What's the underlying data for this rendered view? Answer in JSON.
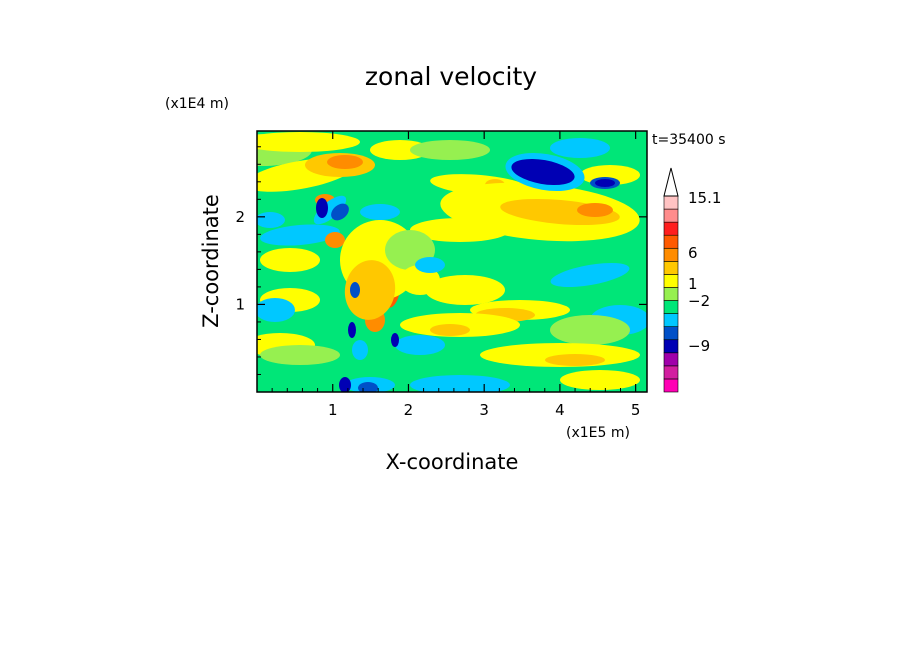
{
  "chart_data": {
    "type": "heatmap",
    "title": "zonal velocity",
    "xlabel": "X-coordinate",
    "ylabel": "Z-coordinate",
    "x_unit": "(x1E5 m)",
    "y_unit": "(x1E4 m)",
    "time_label": "t=35400 s",
    "xlim": [
      0,
      5.15
    ],
    "ylim": [
      0,
      2.98
    ],
    "x_ticks": [
      "1",
      "2",
      "3",
      "4",
      "5"
    ],
    "y_ticks": [
      "1",
      "2"
    ],
    "colorbar": {
      "levels": [
        -15,
        -12,
        -9,
        -6,
        -3,
        -2,
        -1,
        0,
        1,
        2,
        3,
        6,
        9,
        12,
        15.1
      ],
      "labels": [
        "15.1",
        "6",
        "1",
        "−2",
        "−9"
      ],
      "colors": [
        "#ff00b4",
        "#d21ea0",
        "#a000aa",
        "#0000b4",
        "#0050c8",
        "#00c8ff",
        "#00e678",
        "#96f050",
        "#ffff00",
        "#ffc800",
        "#ff8c00",
        "#ff5a00",
        "#ff1e1e",
        "#ff8c8c",
        "#ffc3c3"
      ]
    },
    "grid": false
  }
}
